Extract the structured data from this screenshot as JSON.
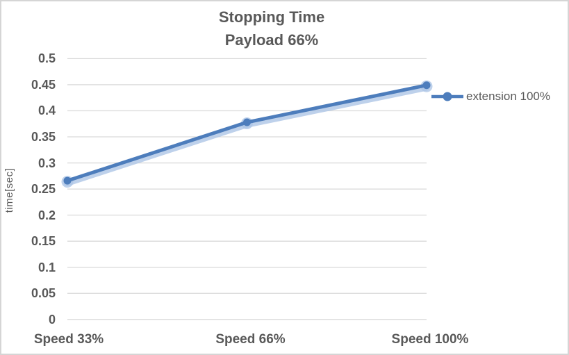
{
  "chart_data": {
    "type": "line",
    "title": "Stopping Time",
    "subtitle": "Payload 66%",
    "categories": [
      "Speed 33%",
      "Speed 66%",
      "Speed 100%"
    ],
    "series": [
      {
        "name": "extension 100%",
        "values": [
          0.266,
          0.378,
          0.449
        ]
      }
    ],
    "xlabel": "",
    "ylabel": "time[sec]",
    "ylim": [
      0,
      0.5
    ],
    "y_tick_step": 0.05,
    "y_tick_labels": [
      "0",
      "0.05",
      "0.1",
      "0.15",
      "0.2",
      "0.25",
      "0.3",
      "0.35",
      "0.4",
      "0.45",
      "0.5"
    ],
    "grid": true,
    "legend_position": "right",
    "marker": "circle"
  },
  "colors": {
    "series_blue": "#4d7dbc",
    "series_glow": "#aec6e6",
    "text_gray": "#595959",
    "gridline": "#d9d9d9"
  }
}
